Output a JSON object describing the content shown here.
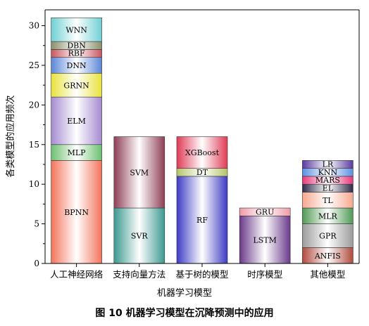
{
  "caption": "图 10    机器学习模型在沉降预测中的应用",
  "chart_data": {
    "type": "bar",
    "stacked": true,
    "xlabel": "机器学习模型",
    "ylabel": "各类模型的应用频次",
    "ylim": [
      0,
      32
    ],
    "yticks": [
      0,
      5,
      10,
      15,
      20,
      25,
      30
    ],
    "grid": false,
    "categories": [
      "人工神经网络",
      "支持向量方法",
      "基于树的模型",
      "时序模型",
      "其他模型"
    ],
    "stacks": [
      {
        "category": "人工神经网络",
        "segments": [
          {
            "name": "BPNN",
            "value": 13,
            "color": "#f4735a"
          },
          {
            "name": "MLP",
            "value": 2,
            "color": "#6cc070"
          },
          {
            "name": "ELM",
            "value": 6,
            "color": "#a58bd0"
          },
          {
            "name": "GRNN",
            "value": 3,
            "color": "#e8e23a"
          },
          {
            "name": "DNN",
            "value": 2,
            "color": "#5b86d8"
          },
          {
            "name": "RBF",
            "value": 1,
            "color": "#c8545e"
          },
          {
            "name": "DBN",
            "value": 1,
            "color": "#8a8f6a"
          },
          {
            "name": "WNN",
            "value": 3,
            "color": "#6fd0d4"
          }
        ]
      },
      {
        "category": "支持向量方法",
        "segments": [
          {
            "name": "SVR",
            "value": 7,
            "color": "#3c9990"
          },
          {
            "name": "SVM",
            "value": 9,
            "color": "#8e3e55"
          }
        ]
      },
      {
        "category": "基于树的模型",
        "segments": [
          {
            "name": "RF",
            "value": 11,
            "color": "#3d3bc4"
          },
          {
            "name": "DT",
            "value": 1,
            "color": "#b5c46a"
          },
          {
            "name": "XGBoost",
            "value": 4,
            "color": "#e03a55"
          }
        ]
      },
      {
        "category": "时序模型",
        "segments": [
          {
            "name": "LSTM",
            "value": 6,
            "color": "#6a3a8a"
          },
          {
            "name": "GRU",
            "value": 1,
            "color": "#f09aa8"
          }
        ]
      },
      {
        "category": "其他模型",
        "segments": [
          {
            "name": "ANFIS",
            "value": 2,
            "color": "#b14a3e"
          },
          {
            "name": "GPR",
            "value": 3,
            "color": "#9a9a9a"
          },
          {
            "name": "MLR",
            "value": 2,
            "color": "#4f9a55"
          },
          {
            "name": "TL",
            "value": 2,
            "color": "#f7a88e"
          },
          {
            "name": "EL",
            "value": 1,
            "color": "#2e2a4a"
          },
          {
            "name": "MARS",
            "value": 1,
            "color": "#e8387a"
          },
          {
            "name": "KNN",
            "value": 1,
            "color": "#5b8fe0"
          },
          {
            "name": "LR",
            "value": 1,
            "color": "#5a3aa0"
          }
        ]
      }
    ]
  }
}
